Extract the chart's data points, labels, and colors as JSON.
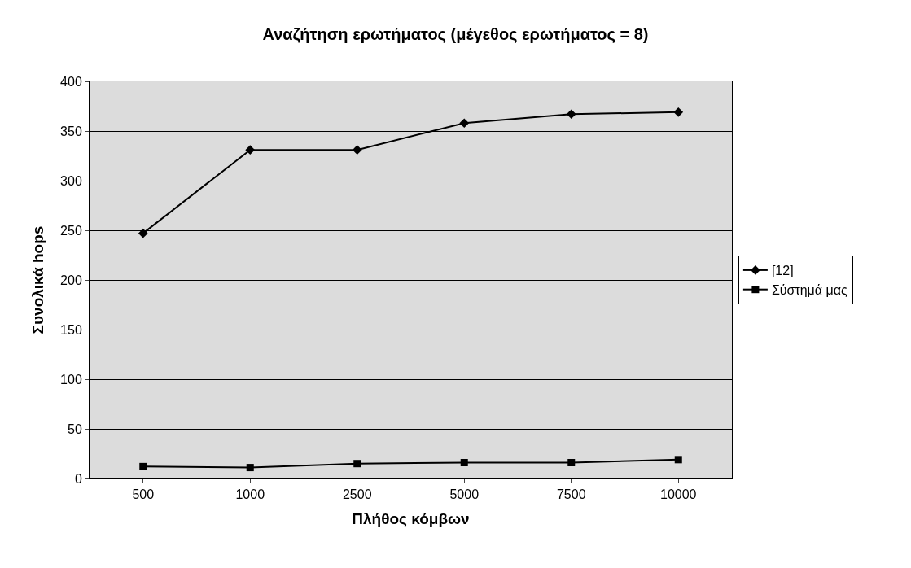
{
  "chart_data": {
    "type": "line",
    "title": "Αναζήτηση ερωτήματος (μέγεθος ερωτήματος = 8)",
    "xlabel": "Πλήθος κόμβων",
    "ylabel": "Συνολικά hops",
    "categories": [
      "500",
      "1000",
      "2500",
      "5000",
      "7500",
      "10000"
    ],
    "series": [
      {
        "name": "[12]",
        "color": "#000000",
        "marker": "diamond",
        "values": [
          247,
          331,
          331,
          358,
          367,
          369
        ]
      },
      {
        "name": "Σύστημά μας",
        "color": "#000000",
        "marker": "square",
        "values": [
          12,
          11,
          15,
          16,
          16,
          19
        ]
      }
    ],
    "ylim": [
      0,
      400
    ],
    "yticks": [
      0,
      50,
      100,
      150,
      200,
      250,
      300,
      350,
      400
    ],
    "grid": "y",
    "legend": "right",
    "line_style": "solid"
  }
}
